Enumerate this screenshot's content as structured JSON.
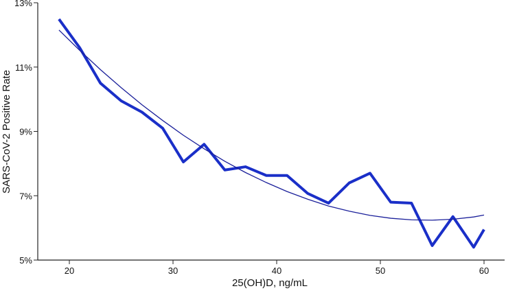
{
  "chart_data": {
    "type": "line",
    "title": "",
    "xlabel": "25(OH)D, ng/mL",
    "ylabel": "SARS-CoV-2 Positive Rate",
    "xlim": [
      17,
      61
    ],
    "ylim": [
      5,
      13
    ],
    "x_ticks": [
      20,
      30,
      40,
      50,
      60
    ],
    "y_ticks": [
      5,
      7,
      9,
      11,
      13
    ],
    "y_tick_labels": [
      "5%",
      "7%",
      "9%",
      "11%",
      "13%"
    ],
    "grid": false,
    "colors": {
      "observed": "#1a2fc8",
      "fitted": "#1a1f9a"
    },
    "series": [
      {
        "x": [
          19,
          21,
          23,
          25,
          27,
          29,
          31,
          33,
          35,
          37,
          39,
          41,
          43,
          45,
          47,
          49,
          51,
          53,
          55,
          57,
          59,
          60
        ],
        "y": [
          12.49,
          11.6,
          10.5,
          9.95,
          9.6,
          9.1,
          8.05,
          8.6,
          7.8,
          7.9,
          7.63,
          7.63,
          7.07,
          6.77,
          7.4,
          7.7,
          6.8,
          6.77,
          5.45,
          6.35,
          5.4,
          5.95
        ]
      },
      {
        "x": [
          19,
          21,
          23,
          25,
          27,
          29,
          31,
          33,
          35,
          37,
          39,
          41,
          43,
          45,
          47,
          49,
          51,
          53,
          55,
          57,
          59,
          60
        ],
        "y": [
          12.15,
          11.52,
          10.92,
          10.36,
          9.83,
          9.34,
          8.88,
          8.46,
          8.07,
          7.72,
          7.41,
          7.13,
          6.89,
          6.68,
          6.52,
          6.39,
          6.3,
          6.25,
          6.24,
          6.27,
          6.34,
          6.4
        ]
      }
    ]
  }
}
